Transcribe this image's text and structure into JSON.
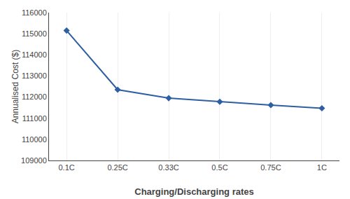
{
  "chart_data": {
    "type": "line",
    "categories": [
      "0.1C",
      "0.25C",
      "0.33C",
      "0.5C",
      "0.75C",
      "1C"
    ],
    "values": [
      115150,
      112350,
      111950,
      111780,
      111620,
      111470
    ],
    "color": "#2E5FA3",
    "marker": "diamond",
    "xlabel": "Charging/Discharging rates",
    "ylabel": "Annualised Cost ($)",
    "ylim": [
      109000,
      116000
    ],
    "yticks": [
      109000,
      110000,
      111000,
      112000,
      113000,
      114000,
      115000,
      116000
    ],
    "grid": "x"
  }
}
